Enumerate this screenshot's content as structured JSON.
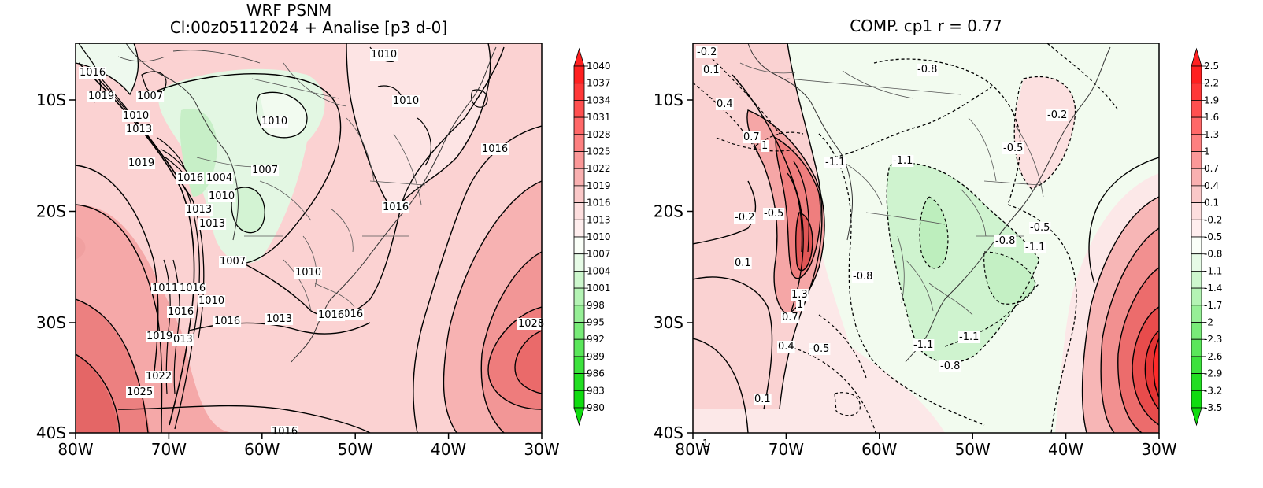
{
  "panels": [
    {
      "title_line1": "WRF PSNM",
      "title_line2": "Cl:00z05112024 + Analise  [p3 d-0]",
      "x_ticks": [
        "80W",
        "70W",
        "60W",
        "50W",
        "40W",
        "30W"
      ],
      "y_ticks": [
        "10S",
        "20S",
        "30S",
        "40S"
      ],
      "colorbar": [
        "1040",
        "1037",
        "1034",
        "1031",
        "1028",
        "1025",
        "1022",
        "1019",
        "1016",
        "1013",
        "1010",
        "1007",
        "1004",
        "1001",
        "998",
        "995",
        "992",
        "989",
        "986",
        "983",
        "980"
      ],
      "contour_labels": [
        "1016",
        "1019",
        "1007",
        "1010",
        "1013",
        "1019",
        "1016",
        "1004",
        "1010",
        "1007",
        "1013",
        "1013",
        "1010",
        "1016",
        "1007",
        "1010",
        "1010",
        "1011",
        "1016",
        "1010",
        "1016",
        "1016",
        "1013",
        "1016",
        "1019",
        "013",
        "1022",
        "1025",
        "1016",
        "1028",
        "1010",
        "1016",
        "1016"
      ]
    },
    {
      "title": "COMP. cp1  r =  0.77",
      "x_ticks": [
        "80W",
        "70W",
        "60W",
        "50W",
        "40W",
        "30W"
      ],
      "y_ticks": [
        "10S",
        "20S",
        "30S",
        "40S"
      ],
      "colorbar": [
        "2.5",
        "2.2",
        "1.9",
        "1.6",
        "1.3",
        "1",
        "0.7",
        "0.4",
        "0.1",
        "-0.2",
        "-0.5",
        "-0.8",
        "-1.1",
        "-1.4",
        "-1.7",
        "-2",
        "-2.3",
        "-2.6",
        "-2.9",
        "-3.2",
        "-3.5"
      ],
      "contour_labels": [
        "-0.2",
        "0.1",
        "0.4",
        "0.7",
        "1",
        "-1.1",
        "-0.8",
        "-1.1",
        "-0.2",
        "-0.5",
        "-0.2",
        "-0.5",
        "0.1",
        "-0.8",
        "-0.5",
        "-1.1",
        "-0.8",
        "1.3",
        "1",
        "0.7",
        "0.4",
        "-0.5",
        "-1.1",
        "-1.1",
        "-0.8",
        "0.1",
        "1"
      ]
    }
  ],
  "colors": {
    "left_ramp": [
      "#ff2020",
      "#ff3838",
      "#ff5050",
      "#ff6868",
      "#fd8080",
      "#fb9898",
      "#f9b0b0",
      "#fac8c8",
      "#fddede",
      "#ffeeee",
      "#fafff8",
      "#e6fbe6",
      "#cdf7cd",
      "#b4f3b4",
      "#96ef96",
      "#78eb78",
      "#5ae65a",
      "#3ce23c",
      "#22de22",
      "#10dc10"
    ],
    "right_ramp": [
      "#ff2020",
      "#ff3838",
      "#ff5050",
      "#ff6868",
      "#fd8080",
      "#fb9898",
      "#f9b0b0",
      "#fac8c8",
      "#fddede",
      "#ffeeee",
      "#fafff8",
      "#e6fbe6",
      "#cdf7cd",
      "#b4f3b4",
      "#96ef96",
      "#78eb78",
      "#5ae65a",
      "#3ce23c",
      "#22de22",
      "#10dc10"
    ]
  }
}
